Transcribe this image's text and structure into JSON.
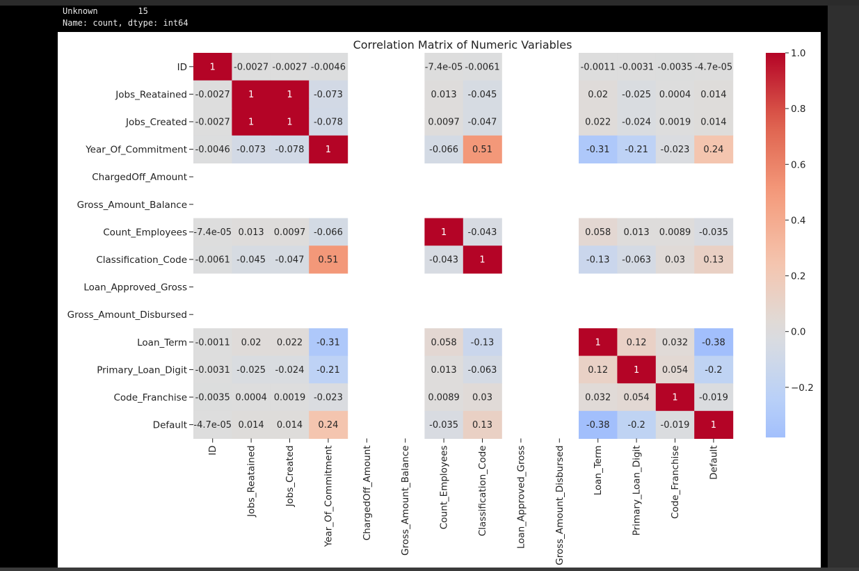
{
  "output": {
    "line1_label": "Unknown",
    "line1_value": "15",
    "line2": "Name: count, dtype: int64"
  },
  "chart_data": {
    "type": "heatmap",
    "title": "Correlation Matrix of Numeric Variables",
    "colormap": "coolwarm",
    "variables": [
      "ID",
      "Jobs_Reatained",
      "Jobs_Created",
      "Year_Of_Commitment",
      "ChargedOff_Amount",
      "Gross_Amount_Balance",
      "Count_Employees",
      "Classification_Code",
      "Loan_Approved_Gross",
      "Gross_Amount_Disbursed",
      "Loan_Term",
      "Primary_Loan_Digit",
      "Code_Franchise",
      "Default"
    ],
    "values": [
      [
        1,
        -0.0027,
        -0.0027,
        -0.0046,
        null,
        null,
        -7.4e-05,
        -0.0061,
        null,
        null,
        -0.0011,
        -0.0031,
        -0.0035,
        -4.7e-05
      ],
      [
        -0.0027,
        1,
        1,
        -0.073,
        null,
        null,
        0.013,
        -0.045,
        null,
        null,
        0.02,
        -0.025,
        0.0004,
        0.014
      ],
      [
        -0.0027,
        1,
        1,
        -0.078,
        null,
        null,
        0.0097,
        -0.047,
        null,
        null,
        0.022,
        -0.024,
        0.0019,
        0.014
      ],
      [
        -0.0046,
        -0.073,
        -0.078,
        1,
        null,
        null,
        -0.066,
        0.51,
        null,
        null,
        -0.31,
        -0.21,
        -0.023,
        0.24
      ],
      [
        null,
        null,
        null,
        null,
        null,
        null,
        null,
        null,
        null,
        null,
        null,
        null,
        null,
        null
      ],
      [
        null,
        null,
        null,
        null,
        null,
        null,
        null,
        null,
        null,
        null,
        null,
        null,
        null,
        null
      ],
      [
        -7.4e-05,
        0.013,
        0.0097,
        -0.066,
        null,
        null,
        1,
        -0.043,
        null,
        null,
        0.058,
        0.013,
        0.0089,
        -0.035
      ],
      [
        -0.0061,
        -0.045,
        -0.047,
        0.51,
        null,
        null,
        -0.043,
        1,
        null,
        null,
        -0.13,
        -0.063,
        0.03,
        0.13
      ],
      [
        null,
        null,
        null,
        null,
        null,
        null,
        null,
        null,
        null,
        null,
        null,
        null,
        null,
        null
      ],
      [
        null,
        null,
        null,
        null,
        null,
        null,
        null,
        null,
        null,
        null,
        null,
        null,
        null,
        null
      ],
      [
        -0.0011,
        0.02,
        0.022,
        -0.31,
        null,
        null,
        0.058,
        -0.13,
        null,
        null,
        1,
        0.12,
        0.032,
        -0.38
      ],
      [
        -0.0031,
        -0.025,
        -0.024,
        -0.21,
        null,
        null,
        0.013,
        -0.063,
        null,
        null,
        0.12,
        1,
        0.054,
        -0.2
      ],
      [
        -0.0035,
        0.0004,
        0.0019,
        -0.023,
        null,
        null,
        0.0089,
        0.03,
        null,
        null,
        0.032,
        0.054,
        1,
        -0.019
      ],
      [
        -4.7e-05,
        0.014,
        0.014,
        0.24,
        null,
        null,
        -0.035,
        0.13,
        null,
        null,
        -0.38,
        -0.2,
        -0.019,
        1
      ]
    ],
    "labels": [
      [
        "1",
        "-0.0027",
        "-0.0027",
        "-0.0046",
        "",
        "",
        "-7.4e-05",
        "-0.0061",
        "",
        "",
        "-0.0011",
        "-0.0031",
        "-0.0035",
        "-4.7e-05"
      ],
      [
        "-0.0027",
        "1",
        "1",
        "-0.073",
        "",
        "",
        "0.013",
        "-0.045",
        "",
        "",
        "0.02",
        "-0.025",
        "0.0004",
        "0.014"
      ],
      [
        "-0.0027",
        "1",
        "1",
        "-0.078",
        "",
        "",
        "0.0097",
        "-0.047",
        "",
        "",
        "0.022",
        "-0.024",
        "0.0019",
        "0.014"
      ],
      [
        "-0.0046",
        "-0.073",
        "-0.078",
        "1",
        "",
        "",
        "-0.066",
        "0.51",
        "",
        "",
        "-0.31",
        "-0.21",
        "-0.023",
        "0.24"
      ],
      [
        "",
        "",
        "",
        "",
        "",
        "",
        "",
        "",
        "",
        "",
        "",
        "",
        "",
        ""
      ],
      [
        "",
        "",
        "",
        "",
        "",
        "",
        "",
        "",
        "",
        "",
        "",
        "",
        "",
        ""
      ],
      [
        "-7.4e-05",
        "0.013",
        "0.0097",
        "-0.066",
        "",
        "",
        "1",
        "-0.043",
        "",
        "",
        "0.058",
        "0.013",
        "0.0089",
        "-0.035"
      ],
      [
        "-0.0061",
        "-0.045",
        "-0.047",
        "0.51",
        "",
        "",
        "-0.043",
        "1",
        "",
        "",
        "-0.13",
        "-0.063",
        "0.03",
        "0.13"
      ],
      [
        "",
        "",
        "",
        "",
        "",
        "",
        "",
        "",
        "",
        "",
        "",
        "",
        "",
        ""
      ],
      [
        "",
        "",
        "",
        "",
        "",
        "",
        "",
        "",
        "",
        "",
        "",
        "",
        "",
        ""
      ],
      [
        "-0.0011",
        "0.02",
        "0.022",
        "-0.31",
        "",
        "",
        "0.058",
        "-0.13",
        "",
        "",
        "1",
        "0.12",
        "0.032",
        "-0.38"
      ],
      [
        "-0.0031",
        "-0.025",
        "-0.024",
        "-0.21",
        "",
        "",
        "0.013",
        "-0.063",
        "",
        "",
        "0.12",
        "1",
        "0.054",
        "-0.2"
      ],
      [
        "-0.0035",
        "0.0004",
        "0.0019",
        "-0.023",
        "",
        "",
        "0.0089",
        "0.03",
        "",
        "",
        "0.032",
        "0.054",
        "1",
        "-0.019"
      ],
      [
        "-4.7e-05",
        "0.014",
        "0.014",
        "0.24",
        "",
        "",
        "-0.035",
        "0.13",
        "",
        "",
        "-0.38",
        "-0.2",
        "-0.019",
        "1"
      ]
    ],
    "colorbar": {
      "range": [
        -0.38,
        1.0
      ],
      "ticks": [
        1.0,
        0.8,
        0.6,
        0.4,
        0.2,
        0.0,
        -0.2
      ],
      "tick_labels": [
        "1.0",
        "0.8",
        "0.6",
        "0.4",
        "0.2",
        "0.0",
        "−0.2"
      ]
    }
  }
}
